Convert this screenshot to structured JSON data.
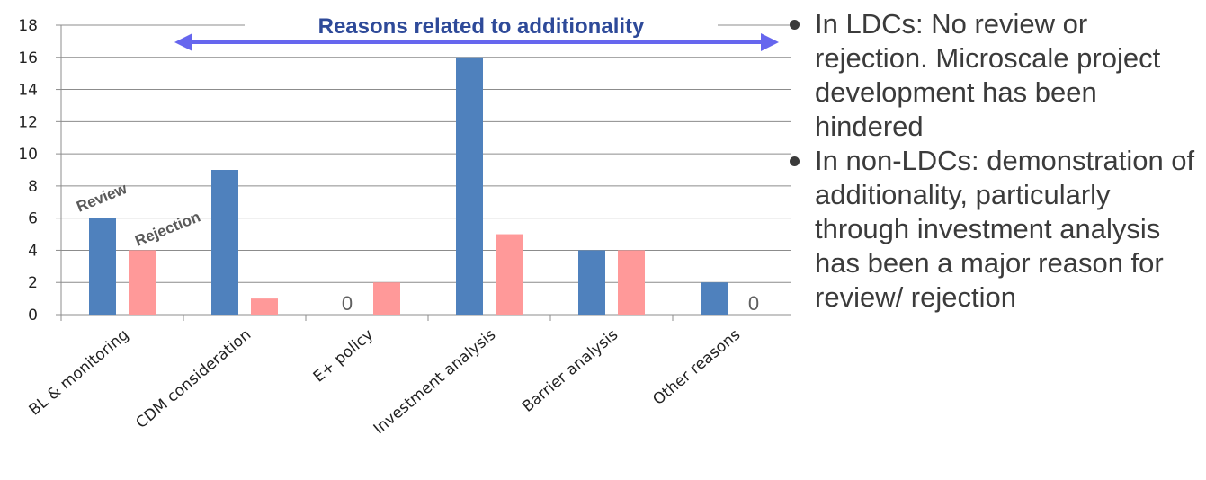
{
  "chart_data": {
    "type": "bar",
    "categories": [
      "BL & monitoring",
      "CDM consideration",
      "E+ policy",
      "Investment analysis",
      "Barrier analysis",
      "Other reasons"
    ],
    "series": [
      {
        "name": "Review",
        "values": [
          6,
          9,
          0,
          16,
          4,
          2
        ],
        "color": "#4f81bd"
      },
      {
        "name": "Rejection",
        "values": [
          4,
          1,
          2,
          5,
          4,
          0
        ],
        "color": "#ff9999"
      }
    ],
    "ylim": [
      0,
      18
    ],
    "yticks": [
      "0",
      "2",
      "4",
      "6",
      "8",
      "10",
      "12",
      "14",
      "16",
      "18"
    ],
    "grid": true,
    "zero_labels": [
      {
        "series": 0,
        "category": 2,
        "text": "0"
      },
      {
        "series": 1,
        "category": 5,
        "text": "0"
      }
    ],
    "annotation": {
      "text": "Reasons related to additionality",
      "text_color": "#2e4a99",
      "arrow_color": "#6666ee",
      "from_category": 1,
      "to_category": 5
    }
  },
  "bullets": [
    "In LDCs: No review or rejection. Microscale project development has been hindered",
    "In non-LDCs: demonstration of additionality, particularly through investment analysis has been a major reason for review/ rejection"
  ]
}
